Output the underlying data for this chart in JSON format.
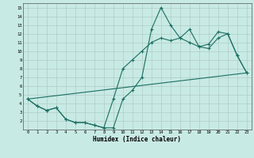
{
  "xlabel": "Humidex (Indice chaleur)",
  "xlim": [
    -0.5,
    23.5
  ],
  "ylim": [
    1,
    15.5
  ],
  "yticks": [
    2,
    3,
    4,
    5,
    6,
    7,
    8,
    9,
    10,
    11,
    12,
    13,
    14,
    15
  ],
  "xticks": [
    0,
    1,
    2,
    3,
    4,
    5,
    6,
    7,
    8,
    9,
    10,
    11,
    12,
    13,
    14,
    15,
    16,
    17,
    18,
    19,
    20,
    21,
    22,
    23
  ],
  "bg_color": "#c8eae4",
  "grid_color": "#b0ccc8",
  "line_color": "#1a6e62",
  "line1_x": [
    0,
    1,
    2,
    3,
    4,
    5,
    6,
    7,
    8,
    9,
    10,
    11,
    12,
    13,
    14,
    15,
    16,
    17,
    18,
    19,
    20,
    21,
    22,
    23
  ],
  "line1_y": [
    4.5,
    3.7,
    3.2,
    3.5,
    2.2,
    1.8,
    1.8,
    1.5,
    1.2,
    1.2,
    4.5,
    5.5,
    7.0,
    12.5,
    15.0,
    13.0,
    11.5,
    11.0,
    10.5,
    10.3,
    11.5,
    12.0,
    9.5,
    7.5
  ],
  "line2_x": [
    0,
    1,
    2,
    3,
    4,
    5,
    6,
    7,
    8,
    9,
    10,
    11,
    12,
    13,
    14,
    15,
    16,
    17,
    18,
    19,
    20,
    21,
    22,
    23
  ],
  "line2_y": [
    4.5,
    3.7,
    3.2,
    3.5,
    2.2,
    1.8,
    1.8,
    1.5,
    1.2,
    4.5,
    8.0,
    9.0,
    10.0,
    11.0,
    11.5,
    11.2,
    11.5,
    12.5,
    10.5,
    10.8,
    12.2,
    12.0,
    9.5,
    7.5
  ],
  "line3_x": [
    0,
    23
  ],
  "line3_y": [
    4.5,
    7.5
  ]
}
